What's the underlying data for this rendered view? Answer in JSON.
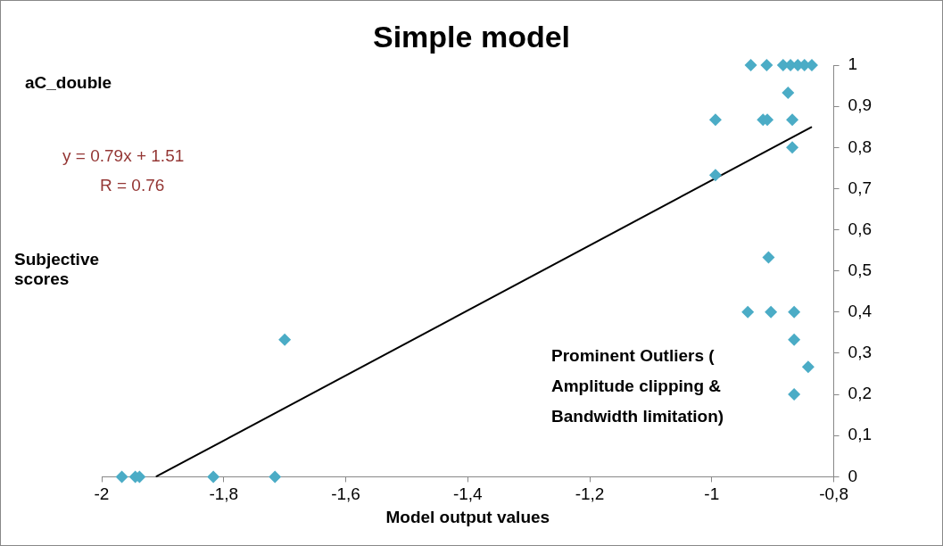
{
  "chart_data": {
    "type": "scatter",
    "title": "Simple model",
    "xlabel": "Model output values",
    "ylabel": "Subjective scores",
    "annotations": [
      "aC_double",
      "y = 0.79x + 1.51",
      "R = 0.76",
      "Prominent Outliers ( Amplitude clipping & Bandwidth limitation)"
    ],
    "series": [
      {
        "color": "#4bacc6",
        "x": [
          -0.936,
          -0.91,
          -0.883,
          -0.871,
          -0.859,
          -0.848,
          -0.836,
          -0.875,
          -0.994,
          -0.916,
          -0.909,
          -0.868,
          -0.868,
          -0.994,
          -0.907,
          -0.941,
          -0.903,
          -0.865,
          -0.865,
          -0.842,
          -0.865,
          -1.967,
          -1.945,
          -1.938,
          -1.817,
          -1.716,
          -1.7
        ],
        "values": [
          1,
          1,
          1,
          1,
          1,
          1,
          1,
          0.933,
          0.867,
          0.867,
          0.867,
          0.867,
          0.8,
          0.733,
          0.533,
          0.4,
          0.4,
          0.4,
          0.333,
          0.267,
          0.2,
          0,
          0,
          0,
          0,
          0,
          0.333
        ]
      },
      {
        "type": "line",
        "color": "#000000",
        "x": [
          -1.91,
          -0.837
        ],
        "values": [
          0.001,
          0.849
        ],
        "marker": "none"
      }
    ],
    "xlim": [
      -2,
      -0.8
    ],
    "xticks": [
      -2,
      {
        "value": -1.8,
        "label": "-1,8"
      },
      {
        "value": -1.6,
        "label": "-1,6"
      },
      {
        "value": -1.4,
        "label": "-1,4"
      },
      {
        "value": -1.2,
        "label": "-1,2"
      },
      -1,
      {
        "value": -0.8,
        "label": "-0,8"
      }
    ],
    "ylim": [
      0,
      1
    ],
    "yticks": [
      0,
      {
        "value": 0.1,
        "label": "0,1"
      },
      {
        "value": 0.2,
        "label": "0,2"
      },
      {
        "value": 0.3,
        "label": "0,3"
      },
      {
        "value": 0.4,
        "label": "0,4"
      },
      {
        "value": 0.5,
        "label": "0,5"
      },
      {
        "value": 0.6,
        "label": "0,6"
      },
      {
        "value": 0.7,
        "label": "0,7"
      },
      {
        "value": 0.8,
        "label": "0,8"
      },
      {
        "value": 0.9,
        "label": "0,9"
      },
      1
    ],
    "grid": false,
    "legend": false,
    "marker": "diamond"
  }
}
